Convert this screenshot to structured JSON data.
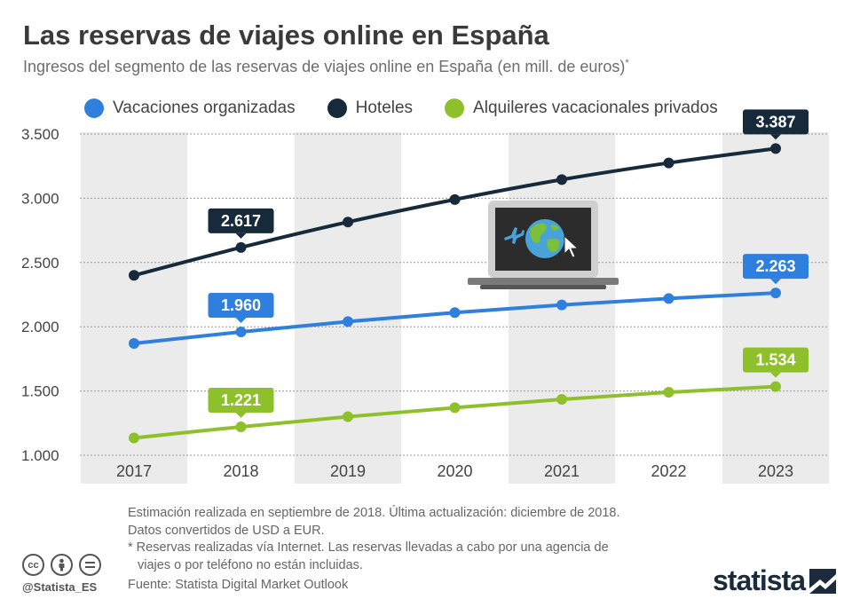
{
  "header": {
    "title": "Las reservas de viajes online en España",
    "subtitle": "Ingresos del segmento de las reservas de viajes online en España (en mill. de euros)",
    "subtitle_mark": "*"
  },
  "legend": {
    "items": [
      {
        "label": "Vacaciones organizadas",
        "color": "#2f7fdf"
      },
      {
        "label": "Hoteles",
        "color": "#172a3c"
      },
      {
        "label": "Alquileres vacacionales privados",
        "color": "#8ec02b"
      }
    ]
  },
  "chart_data": {
    "type": "line",
    "x": [
      2017,
      2018,
      2019,
      2020,
      2021,
      2022,
      2023
    ],
    "ylim": [
      1000,
      3500
    ],
    "yticks": [
      1000,
      1500,
      2000,
      2500,
      3000,
      3500
    ],
    "ytick_labels": [
      "1.000",
      "1.500",
      "2.000",
      "2.500",
      "3.000",
      "3.500"
    ],
    "grid": true,
    "legend_position": "top",
    "series": [
      {
        "name": "Vacaciones organizadas",
        "color": "#2f7fdf",
        "values": [
          1870,
          1960,
          2040,
          2110,
          2170,
          2220,
          2263
        ],
        "labels": [
          {
            "x": 2018,
            "text": "1.960"
          },
          {
            "x": 2023,
            "text": "2.263"
          }
        ]
      },
      {
        "name": "Hoteles",
        "color": "#172a3c",
        "values": [
          2400,
          2617,
          2815,
          2990,
          3145,
          3275,
          3387
        ],
        "labels": [
          {
            "x": 2018,
            "text": "2.617"
          },
          {
            "x": 2023,
            "text": "3.387"
          }
        ]
      },
      {
        "name": "Alquileres vacacionales privados",
        "color": "#8ec02b",
        "values": [
          1135,
          1221,
          1300,
          1370,
          1435,
          1490,
          1534
        ],
        "labels": [
          {
            "x": 2018,
            "text": "1.221"
          },
          {
            "x": 2023,
            "text": "1.534"
          }
        ]
      }
    ]
  },
  "notes": {
    "line1": "Estimación realizada en septiembre de 2018. Última actualización: diciembre de 2018.",
    "line2": "Datos convertidos de USD a EUR.",
    "line3": "* Reservas realizadas vía Internet. Las reservas llevadas a cabo por una agencia de",
    "line4": "viajes o por teléfono no están incluidas.",
    "source": "Fuente: Statista Digital Market Outlook"
  },
  "footer": {
    "handle": "@Statista_ES",
    "brand": "statista",
    "license_icons": [
      "cc-icon",
      "person-icon",
      "equals-icon"
    ]
  },
  "illustration": {
    "icon": "laptop-globe-icon"
  }
}
